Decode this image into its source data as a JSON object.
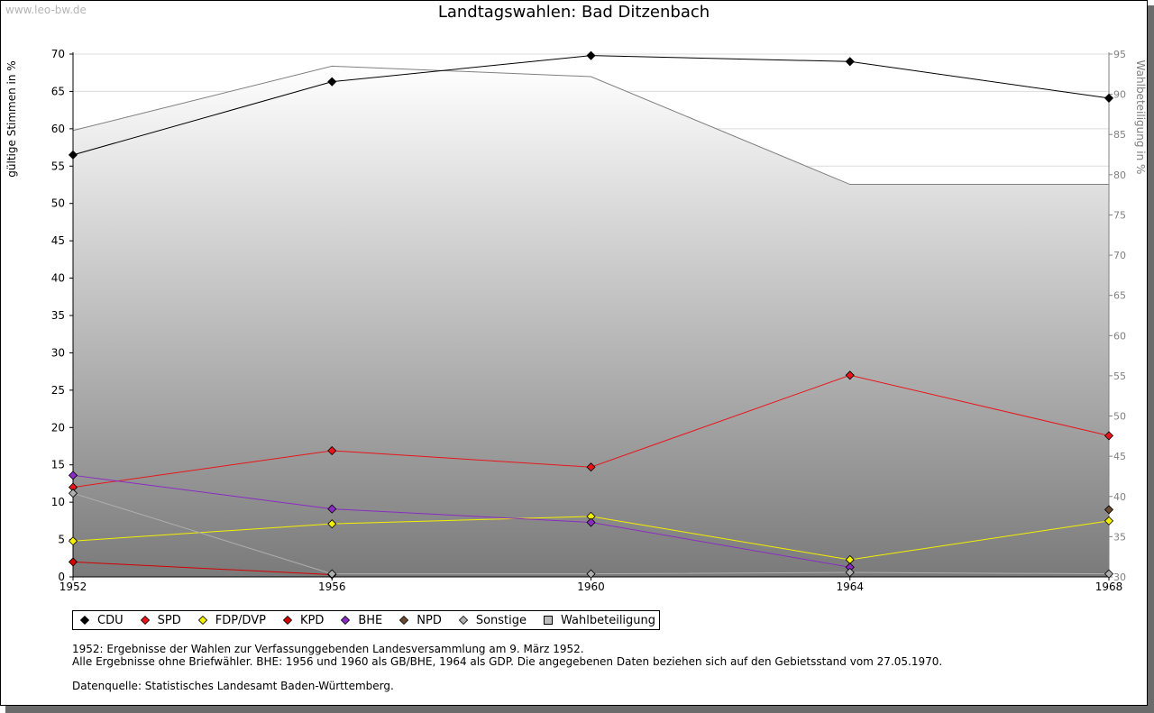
{
  "watermark": "www.leo-bw.de",
  "chart_data": {
    "type": "line",
    "title": "Landtagswahlen: Bad Ditzenbach",
    "x": [
      "1952",
      "1956",
      "1960",
      "1964",
      "1968"
    ],
    "ylabel": "gültige Stimmen in %",
    "ylabel_right": "Wahlbeteiligung in %",
    "ylim": [
      0,
      70
    ],
    "ylim_right": [
      30,
      95
    ],
    "yticks": [
      0,
      5,
      10,
      15,
      20,
      25,
      30,
      35,
      40,
      45,
      50,
      55,
      60,
      65,
      70
    ],
    "yticks_right": [
      30,
      35,
      40,
      45,
      50,
      55,
      60,
      65,
      70,
      75,
      80,
      85,
      90,
      95
    ],
    "grid": true,
    "legend_position": "bottom-left",
    "series": [
      {
        "name": "CDU",
        "color": "#000000",
        "values": [
          56.5,
          66.3,
          69.8,
          69.0,
          64.1
        ]
      },
      {
        "name": "SPD",
        "color": "#e8161b",
        "values": [
          12.0,
          16.9,
          14.7,
          27.0,
          18.9
        ]
      },
      {
        "name": "FDP/DVP",
        "color": "#f5f000",
        "values": [
          4.8,
          7.1,
          8.1,
          2.3,
          7.5
        ]
      },
      {
        "name": "KPD",
        "color": "#d40000",
        "values": [
          2.0,
          0.3,
          null,
          null,
          null
        ]
      },
      {
        "name": "BHE",
        "color": "#8a2bc4",
        "values": [
          13.6,
          9.1,
          7.3,
          1.3,
          null
        ]
      },
      {
        "name": "NPD",
        "color": "#6b4a2e",
        "values": [
          null,
          null,
          null,
          null,
          9.0
        ]
      },
      {
        "name": "Sonstige",
        "color": "#b0b0b0",
        "values": [
          11.2,
          0.4,
          0.4,
          0.6,
          0.4
        ]
      }
    ],
    "turnout": {
      "name": "Wahlbeteiligung",
      "color": "#808080",
      "values": [
        85.5,
        93.5,
        92.2,
        78.8,
        78.8
      ]
    }
  },
  "notes": {
    "line1": "1952: Ergebnisse der Wahlen zur Verfassunggebenden Landesversammlung am 9. März 1952.",
    "line2": "Alle Ergebnisse ohne Briefwähler. BHE: 1956 und 1960 als GB/BHE, 1964 als GDP. Die angegebenen Daten beziehen sich auf den Gebietsstand vom 27.05.1970.",
    "source": "Datenquelle: Statistisches Landesamt Baden-Württemberg."
  }
}
